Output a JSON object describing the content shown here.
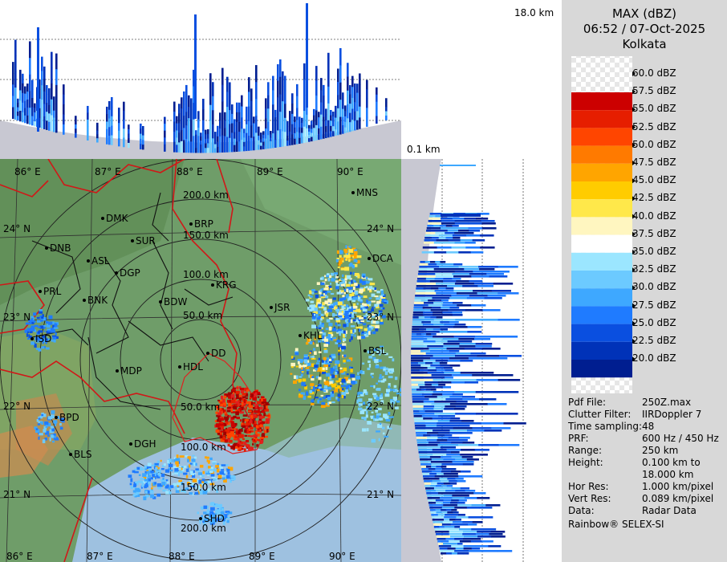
{
  "header": {
    "product": "MAX (dBZ)",
    "datetime": "06:52 / 07-Oct-2025",
    "station": "Kolkata"
  },
  "height_labels": {
    "top": "18.0 km",
    "bottom": "0.1 km"
  },
  "color_scale": {
    "labels": [
      "60.0 dBZ",
      "57.5 dBZ",
      "55.0 dBZ",
      "52.5 dBZ",
      "50.0 dBZ",
      "47.5 dBZ",
      "45.0 dBZ",
      "42.5 dBZ",
      "40.0 dBZ",
      "37.5 dBZ",
      "35.0 dBZ",
      "32.5 dBZ",
      "30.0 dBZ",
      "27.5 dBZ",
      "25.0 dBZ",
      "22.5 dBZ",
      "20.0 dBZ"
    ],
    "colors": [
      "#a00000",
      "#cc0000",
      "#e61e00",
      "#ff4500",
      "#ff7a00",
      "#ffa500",
      "#ffcc00",
      "#ffe84a",
      "#fff6c0",
      "#ffffff",
      "#9be6ff",
      "#6ccaff",
      "#3ea8ff",
      "#1f7bff",
      "#0a4fe0",
      "#0032b8",
      "#001e90"
    ]
  },
  "info": [
    {
      "key": "Pdf File:",
      "value": "250Z.max"
    },
    {
      "key": "Clutter Filter:",
      "value": "IIRDoppler 7"
    },
    {
      "key": "Time sampling:",
      "value": "48"
    },
    {
      "key": "PRF:",
      "value": "600 Hz / 450 Hz"
    },
    {
      "key": "Range:",
      "value": "250 km"
    },
    {
      "key": "Height:",
      "value": "0.100 km to"
    },
    {
      "key": "",
      "value": "18.000 km"
    },
    {
      "key": "Hor Res:",
      "value": "1.000 km/pixel"
    },
    {
      "key": "Vert Res:",
      "value": "0.089 km/pixel"
    },
    {
      "key": "Data:",
      "value": "Radar Data"
    }
  ],
  "footer": "Rainbow® SELEX-SI",
  "map": {
    "lon_labels": [
      "86° E",
      "87° E",
      "88° E",
      "89° E",
      "90° E"
    ],
    "lat_labels": [
      "24° N",
      "23° N",
      "22° N",
      "21° N"
    ],
    "range_rings": [
      "50.0 km",
      "100.0 km",
      "150.0 km",
      "200.0 km"
    ],
    "cities": [
      "MNS",
      "DMK",
      "BRP",
      "DNB",
      "SUR",
      "ASL",
      "DGP",
      "KRG",
      "DCA",
      "PRL",
      "BNK",
      "BDW",
      "JSR",
      "KHL",
      "ISD",
      "DD",
      "BSL",
      "MDP",
      "HDL",
      "BPD",
      "DGH",
      "BLS",
      "SHD"
    ]
  }
}
